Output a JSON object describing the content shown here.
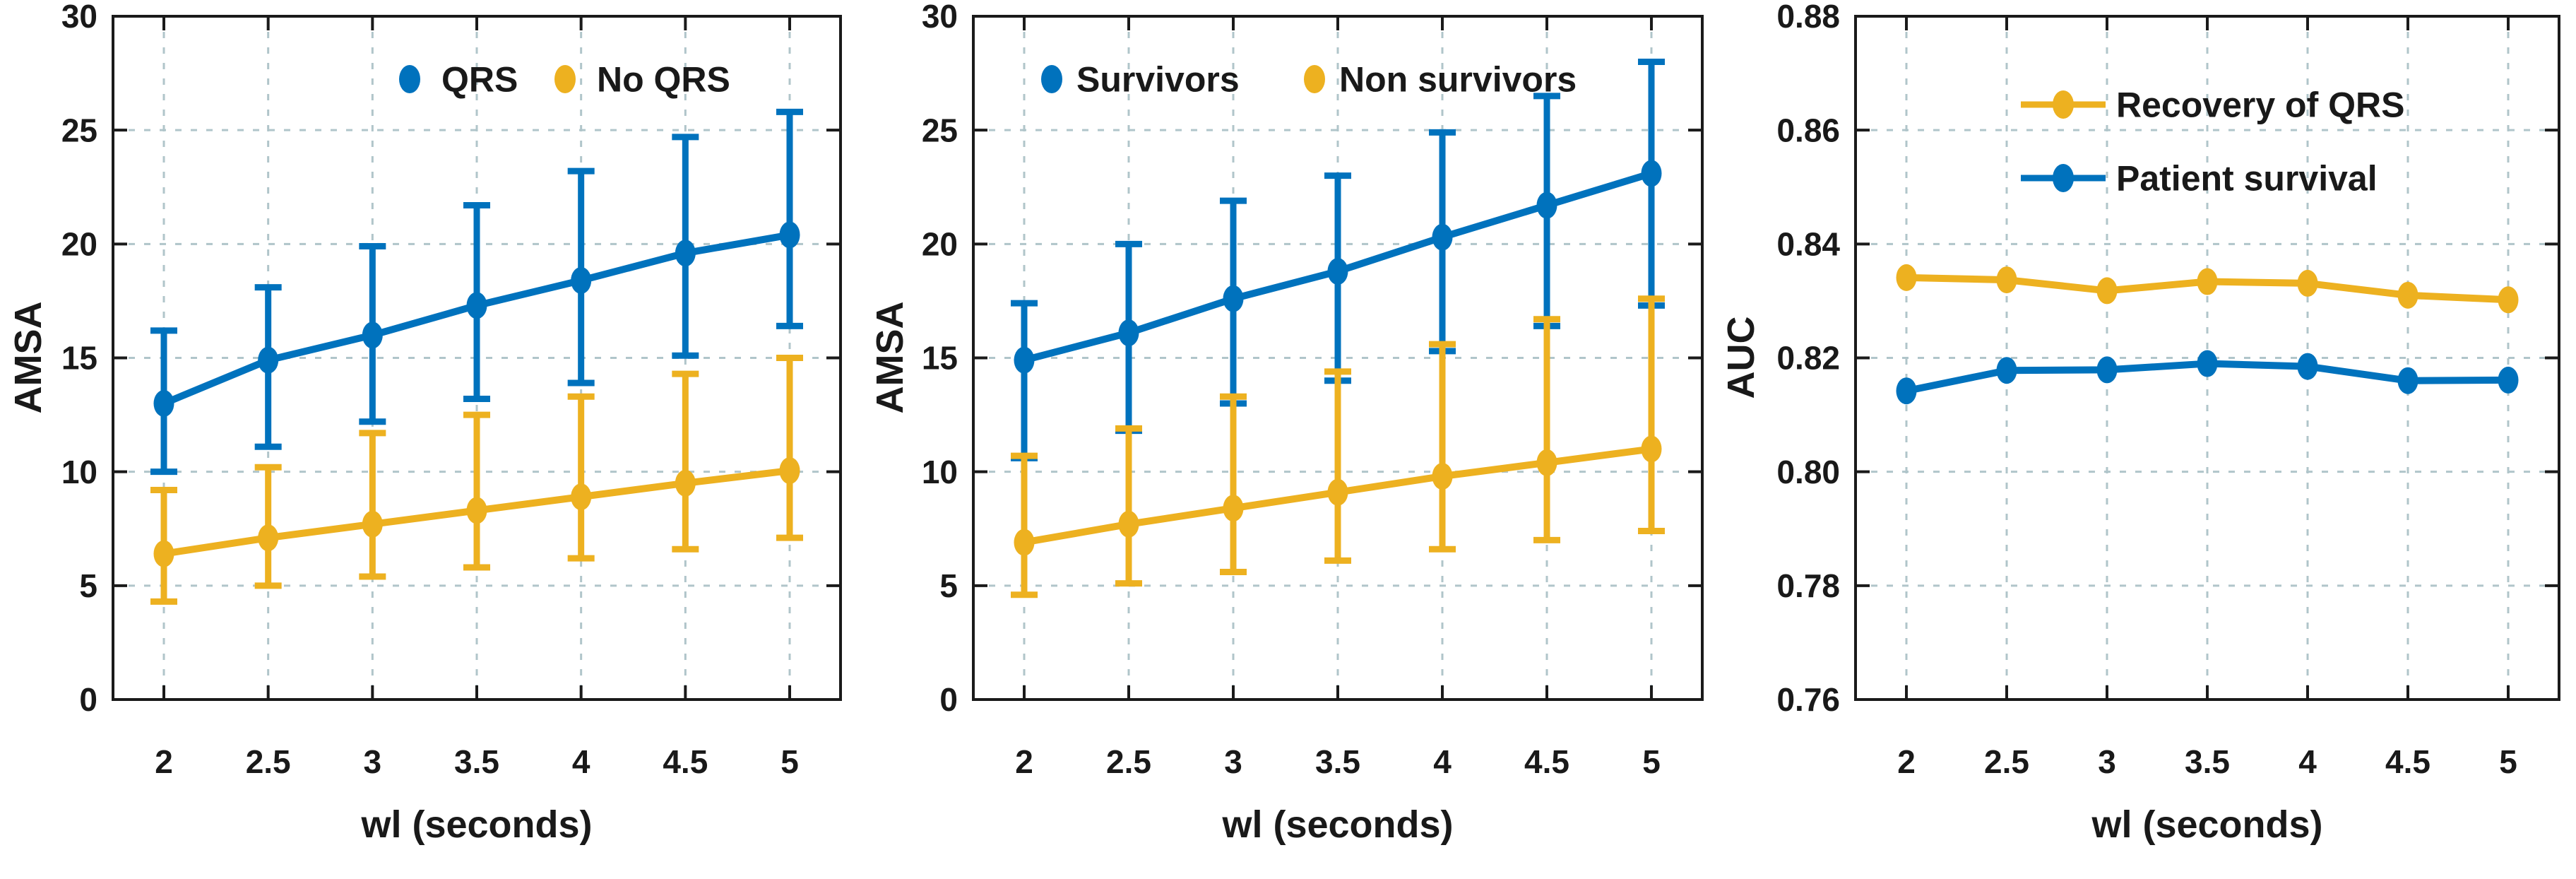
{
  "figure": {
    "background": "#ffffff",
    "x_axis_values": [
      2,
      2.5,
      3,
      3.5,
      4,
      4.5,
      5
    ]
  },
  "colors": {
    "series_blue": "#0072BD",
    "series_yellow": "#EDB120",
    "grid": "#b0c5ca",
    "axis": "#1a1a1a",
    "text": "#191919"
  },
  "chart_data": [
    {
      "type": "line",
      "subtype": "errorbar",
      "title": "",
      "xlabel": "wl (seconds)",
      "ylabel": "AMSA",
      "x": [
        2,
        2.5,
        3,
        3.5,
        4,
        4.5,
        5
      ],
      "xtick_labels": [
        "2",
        "2.5",
        "3",
        "3.5",
        "4",
        "4.5",
        "5"
      ],
      "ylim": [
        0,
        30
      ],
      "yticks": [
        0,
        5,
        10,
        15,
        20,
        25,
        30
      ],
      "ytick_labels": [
        "0",
        "5",
        "10",
        "15",
        "20",
        "25",
        "30"
      ],
      "grid": true,
      "legend_position": "top-center-inside",
      "legend_style": "marker-only",
      "series": [
        {
          "name": "QRS",
          "color": "#0072BD",
          "marker": "ellipse",
          "values": [
            13.0,
            14.9,
            16.0,
            17.3,
            18.4,
            19.6,
            20.4
          ],
          "err_lower": [
            10.0,
            11.1,
            12.2,
            13.2,
            13.9,
            15.1,
            16.4
          ],
          "err_upper": [
            16.2,
            18.1,
            19.9,
            21.7,
            23.2,
            24.7,
            25.8
          ]
        },
        {
          "name": "No QRS",
          "color": "#EDB120",
          "marker": "ellipse",
          "values": [
            6.4,
            7.1,
            7.7,
            8.3,
            8.9,
            9.5,
            10.05
          ],
          "err_lower": [
            4.3,
            5.0,
            5.4,
            5.8,
            6.2,
            6.6,
            7.1
          ],
          "err_upper": [
            9.2,
            10.2,
            11.7,
            12.5,
            13.3,
            14.3,
            15.0
          ]
        }
      ]
    },
    {
      "type": "line",
      "subtype": "errorbar",
      "title": "",
      "xlabel": "wl (seconds)",
      "ylabel": "AMSA",
      "x": [
        2,
        2.5,
        3,
        3.5,
        4,
        4.5,
        5
      ],
      "xtick_labels": [
        "2",
        "2.5",
        "3",
        "3.5",
        "4",
        "4.5",
        "5"
      ],
      "ylim": [
        0,
        30
      ],
      "yticks": [
        0,
        5,
        10,
        15,
        20,
        25,
        30
      ],
      "ytick_labels": [
        "0",
        "5",
        "10",
        "15",
        "20",
        "25",
        "30"
      ],
      "grid": true,
      "legend_position": "top-center-inside",
      "legend_style": "marker-only",
      "series": [
        {
          "name": "Survivors",
          "color": "#0072BD",
          "marker": "ellipse",
          "values": [
            14.9,
            16.1,
            17.6,
            18.8,
            20.3,
            21.7,
            23.1
          ],
          "err_lower": [
            10.6,
            11.8,
            13.0,
            14.0,
            15.3,
            16.4,
            17.3
          ],
          "err_upper": [
            17.4,
            20.0,
            21.9,
            23.0,
            24.9,
            26.5,
            28.0
          ]
        },
        {
          "name": "Non survivors",
          "color": "#EDB120",
          "marker": "ellipse",
          "values": [
            6.9,
            7.7,
            8.4,
            9.1,
            9.8,
            10.4,
            11.0
          ],
          "err_lower": [
            4.6,
            5.1,
            5.6,
            6.1,
            6.6,
            7.0,
            7.4
          ],
          "err_upper": [
            10.7,
            11.9,
            13.3,
            14.4,
            15.6,
            16.7,
            17.6
          ]
        }
      ]
    },
    {
      "type": "line",
      "subtype": "line-marker",
      "title": "",
      "xlabel": "wl (seconds)",
      "ylabel": "AUC",
      "x": [
        2,
        2.5,
        3,
        3.5,
        4,
        4.5,
        5
      ],
      "xtick_labels": [
        "2",
        "2.5",
        "3",
        "3.5",
        "4",
        "4.5",
        "5"
      ],
      "ylim": [
        0.76,
        0.88
      ],
      "yticks": [
        0.76,
        0.78,
        0.8,
        0.82,
        0.84,
        0.86,
        0.88
      ],
      "ytick_labels": [
        "0.76",
        "0.78",
        "0.80",
        "0.82",
        "0.84",
        "0.86",
        "0.88"
      ],
      "grid": true,
      "legend_position": "top-right-inside",
      "legend_style": "line-marker",
      "series": [
        {
          "name": "Recovery of QRS",
          "color": "#EDB120",
          "marker": "ellipse",
          "values": [
            0.8341,
            0.8337,
            0.8318,
            0.8334,
            0.8331,
            0.831,
            0.8302
          ]
        },
        {
          "name": "Patient survival",
          "color": "#0072BD",
          "marker": "ellipse",
          "values": [
            0.8142,
            0.8178,
            0.8179,
            0.819,
            0.8185,
            0.816,
            0.8161
          ]
        }
      ]
    }
  ]
}
